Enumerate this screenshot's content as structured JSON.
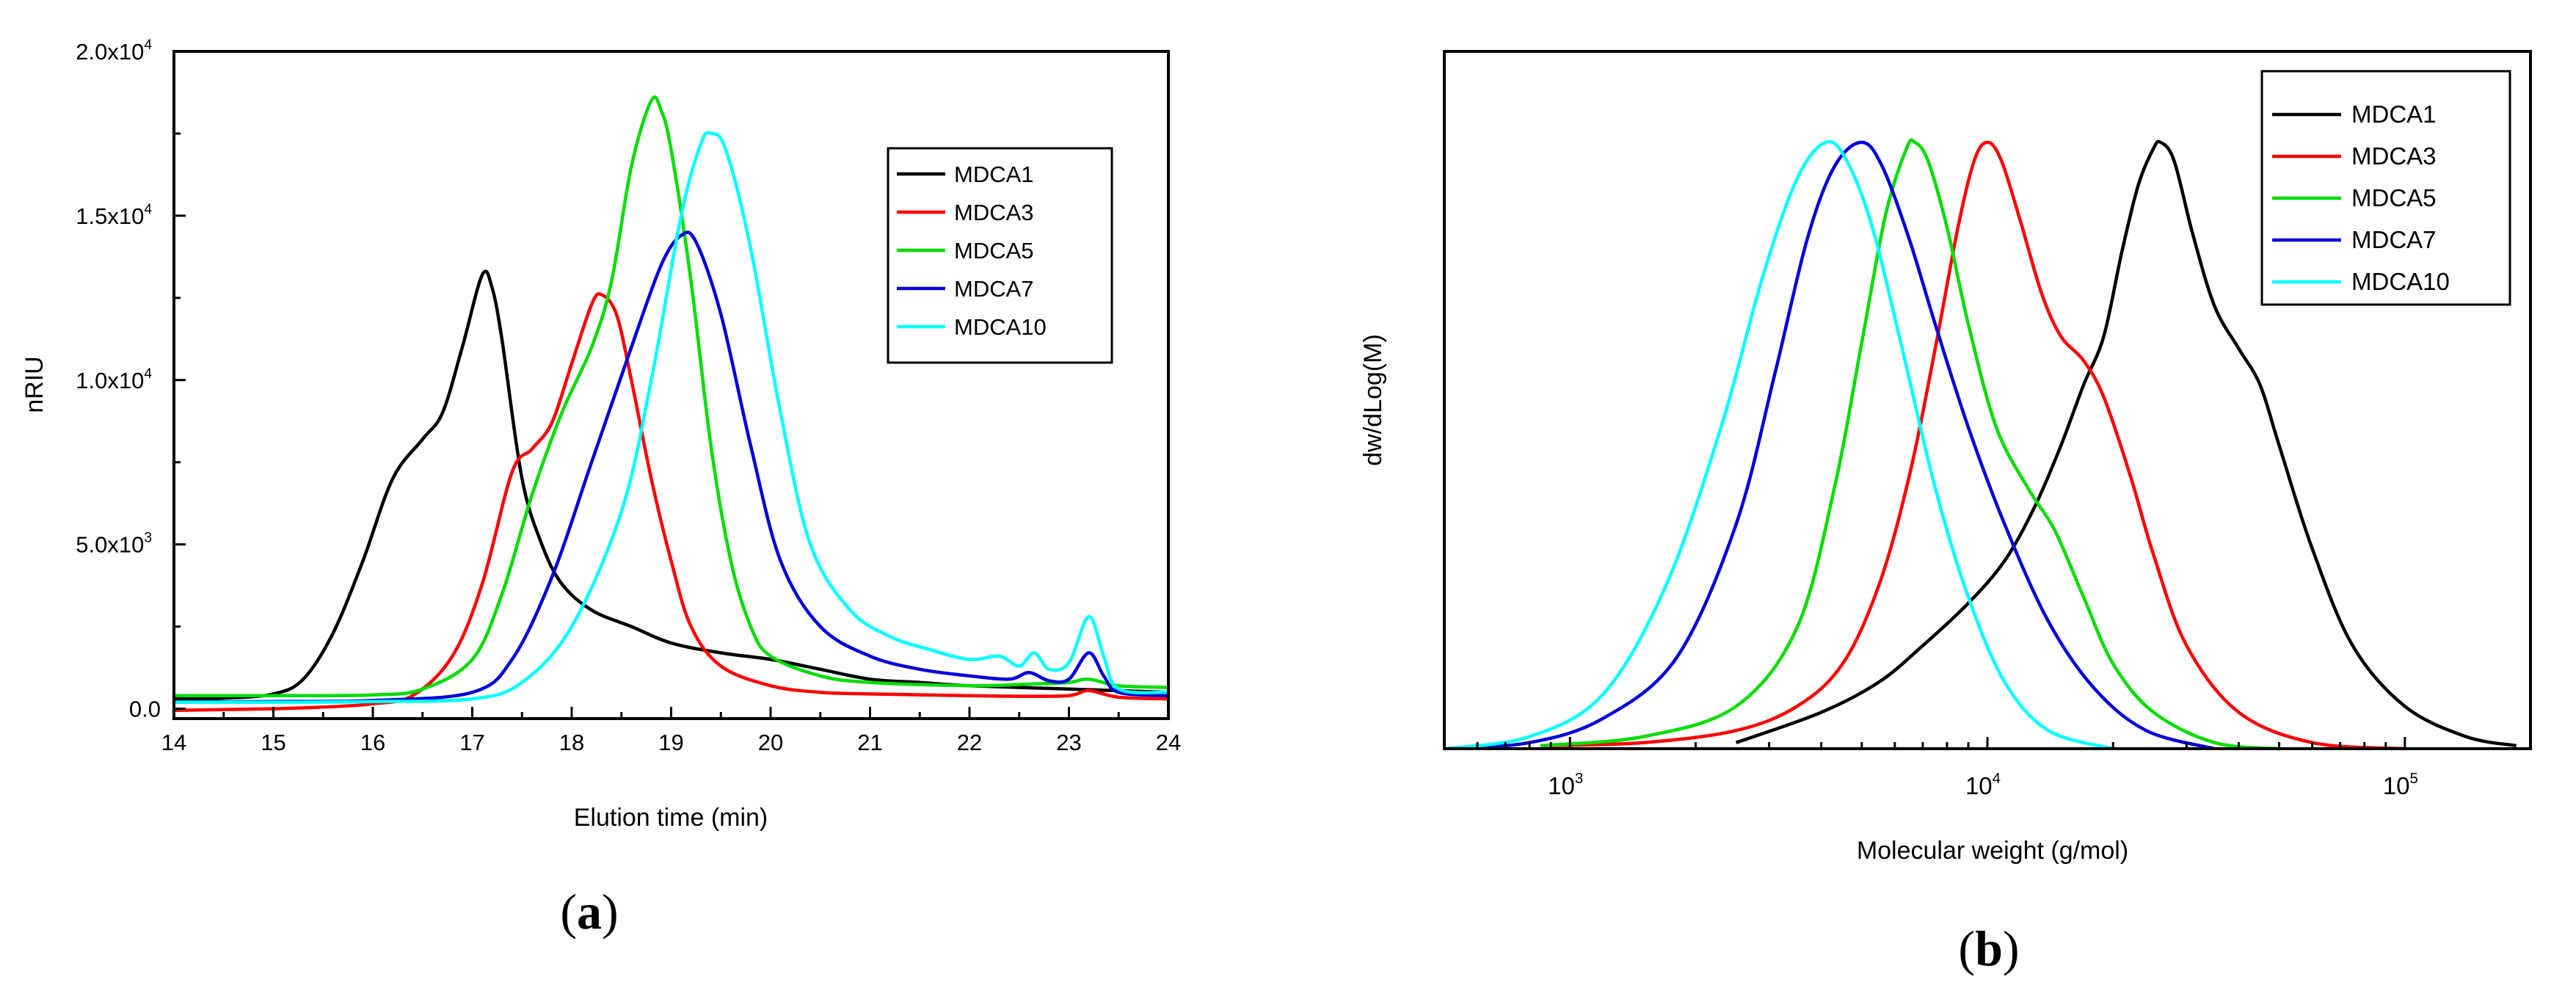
{
  "chart_data": [
    {
      "type": "line",
      "panel_label": "(a)",
      "panel_letter": "a",
      "xlabel": "Elution time (min)",
      "ylabel": "nRIU",
      "xlim": [
        14,
        24
      ],
      "ylim": [
        -300,
        20000
      ],
      "xticks": [
        "14",
        "15",
        "16",
        "17",
        "18",
        "19",
        "20",
        "21",
        "22",
        "23",
        "24"
      ],
      "xtick_values": [
        14,
        15,
        16,
        17,
        18,
        19,
        20,
        21,
        22,
        23,
        24
      ],
      "yticks": [
        {
          "value": 0,
          "label": "0.0"
        },
        {
          "value": 5000,
          "label": "5.0x10",
          "exp": "3"
        },
        {
          "value": 10000,
          "label": "1.0x10",
          "exp": "4"
        },
        {
          "value": 15000,
          "label": "1.5x10",
          "exp": "4"
        },
        {
          "value": 20000,
          "label": "2.0x10",
          "exp": "4"
        }
      ],
      "legend": [
        "MDCA1",
        "MDCA3",
        "MDCA5",
        "MDCA7",
        "MDCA10"
      ],
      "legend_position": "top-right",
      "series": [
        {
          "name": "MDCA1",
          "color": "#000000",
          "points": [
            [
              14,
              300
            ],
            [
              14.5,
              320
            ],
            [
              15,
              450
            ],
            [
              15.3,
              900
            ],
            [
              15.6,
              2300
            ],
            [
              15.9,
              4500
            ],
            [
              16.2,
              7000
            ],
            [
              16.5,
              8200
            ],
            [
              16.7,
              9000
            ],
            [
              16.9,
              11000
            ],
            [
              17.1,
              13200
            ],
            [
              17.2,
              12800
            ],
            [
              17.3,
              11200
            ],
            [
              17.5,
              7000
            ],
            [
              17.7,
              5000
            ],
            [
              17.9,
              3800
            ],
            [
              18.2,
              3000
            ],
            [
              18.6,
              2500
            ],
            [
              19,
              2000
            ],
            [
              19.5,
              1700
            ],
            [
              20,
              1500
            ],
            [
              20.5,
              1200
            ],
            [
              21,
              900
            ],
            [
              21.5,
              800
            ],
            [
              22,
              700
            ],
            [
              23,
              600
            ],
            [
              24,
              500
            ]
          ]
        },
        {
          "name": "MDCA3",
          "color": "#ff0000",
          "points": [
            [
              14,
              -50
            ],
            [
              15,
              0
            ],
            [
              15.5,
              50
            ],
            [
              16,
              150
            ],
            [
              16.4,
              400
            ],
            [
              16.8,
              1600
            ],
            [
              17.1,
              3800
            ],
            [
              17.4,
              7200
            ],
            [
              17.6,
              7900
            ],
            [
              17.8,
              8700
            ],
            [
              18,
              10500
            ],
            [
              18.2,
              12300
            ],
            [
              18.3,
              12600
            ],
            [
              18.45,
              12000
            ],
            [
              18.6,
              10000
            ],
            [
              18.8,
              7000
            ],
            [
              19,
              4500
            ],
            [
              19.2,
              2500
            ],
            [
              19.5,
              1300
            ],
            [
              20,
              700
            ],
            [
              20.5,
              500
            ],
            [
              21,
              450
            ],
            [
              22,
              400
            ],
            [
              22.5,
              380
            ],
            [
              23,
              400
            ],
            [
              23.2,
              550
            ],
            [
              23.5,
              350
            ],
            [
              24,
              300
            ]
          ]
        },
        {
          "name": "MDCA5",
          "color": "#00dd00",
          "points": [
            [
              14,
              400
            ],
            [
              15,
              400
            ],
            [
              16,
              420
            ],
            [
              16.5,
              600
            ],
            [
              17,
              1500
            ],
            [
              17.3,
              3500
            ],
            [
              17.6,
              6500
            ],
            [
              17.9,
              9000
            ],
            [
              18.2,
              11000
            ],
            [
              18.4,
              13000
            ],
            [
              18.6,
              16500
            ],
            [
              18.8,
              18500
            ],
            [
              18.9,
              18200
            ],
            [
              19,
              17000
            ],
            [
              19.2,
              13000
            ],
            [
              19.4,
              8000
            ],
            [
              19.6,
              4500
            ],
            [
              19.8,
              2500
            ],
            [
              20,
              1600
            ],
            [
              20.5,
              1000
            ],
            [
              21,
              800
            ],
            [
              22,
              700
            ],
            [
              22.6,
              750
            ],
            [
              23,
              800
            ],
            [
              23.2,
              900
            ],
            [
              23.5,
              700
            ],
            [
              24,
              650
            ]
          ]
        },
        {
          "name": "MDCA7",
          "color": "#0000dd",
          "points": [
            [
              14,
              200
            ],
            [
              15,
              220
            ],
            [
              16,
              250
            ],
            [
              17,
              500
            ],
            [
              17.4,
              1500
            ],
            [
              17.8,
              4000
            ],
            [
              18.2,
              7500
            ],
            [
              18.6,
              11000
            ],
            [
              18.9,
              13500
            ],
            [
              19.1,
              14400
            ],
            [
              19.25,
              14200
            ],
            [
              19.5,
              12000
            ],
            [
              19.8,
              8000
            ],
            [
              20.1,
              4500
            ],
            [
              20.5,
              2500
            ],
            [
              21,
              1600
            ],
            [
              21.5,
              1200
            ],
            [
              22,
              1000
            ],
            [
              22.4,
              900
            ],
            [
              22.6,
              1100
            ],
            [
              22.8,
              850
            ],
            [
              23,
              900
            ],
            [
              23.2,
              1700
            ],
            [
              23.35,
              1000
            ],
            [
              23.5,
              500
            ],
            [
              24,
              400
            ]
          ]
        },
        {
          "name": "MDCA10",
          "color": "#00ffff",
          "points": [
            [
              14,
              200
            ],
            [
              15,
              200
            ],
            [
              16,
              220
            ],
            [
              17,
              300
            ],
            [
              17.5,
              800
            ],
            [
              18,
              2500
            ],
            [
              18.5,
              6000
            ],
            [
              18.8,
              10000
            ],
            [
              19.1,
              15000
            ],
            [
              19.3,
              17200
            ],
            [
              19.4,
              17500
            ],
            [
              19.55,
              17000
            ],
            [
              19.8,
              14000
            ],
            [
              20.1,
              9000
            ],
            [
              20.4,
              5000
            ],
            [
              20.8,
              3000
            ],
            [
              21.2,
              2200
            ],
            [
              21.6,
              1800
            ],
            [
              22,
              1500
            ],
            [
              22.3,
              1600
            ],
            [
              22.5,
              1300
            ],
            [
              22.65,
              1700
            ],
            [
              22.8,
              1200
            ],
            [
              23,
              1400
            ],
            [
              23.2,
              2800
            ],
            [
              23.35,
              1600
            ],
            [
              23.5,
              600
            ],
            [
              24,
              500
            ]
          ]
        }
      ]
    },
    {
      "type": "line",
      "panel_label": "(b)",
      "panel_letter": "b",
      "xlabel": "Molecular weight (g/mol)",
      "ylabel": "dw/dLog(M)",
      "xscale": "log",
      "xlim": [
        500,
        200000
      ],
      "ylim": [
        0,
        1.15
      ],
      "xticks": [
        {
          "value": 1000,
          "label": "10",
          "exp": "3"
        },
        {
          "value": 10000,
          "label": "10",
          "exp": "4"
        },
        {
          "value": 100000,
          "label": "10",
          "exp": "5"
        }
      ],
      "legend": [
        "MDCA1",
        "MDCA3",
        "MDCA5",
        "MDCA7",
        "MDCA10"
      ],
      "legend_position": "top-right",
      "series": [
        {
          "name": "MDCA1",
          "color": "#000000",
          "points": [
            [
              2500,
              0.01
            ],
            [
              4000,
              0.06
            ],
            [
              5500,
              0.11
            ],
            [
              7000,
              0.17
            ],
            [
              9000,
              0.24
            ],
            [
              11000,
              0.31
            ],
            [
              13000,
              0.4
            ],
            [
              15000,
              0.5
            ],
            [
              17000,
              0.6
            ],
            [
              19000,
              0.68
            ],
            [
              21000,
              0.82
            ],
            [
              23000,
              0.93
            ],
            [
              25000,
              0.99
            ],
            [
              26000,
              1.0
            ],
            [
              28000,
              0.97
            ],
            [
              31000,
              0.85
            ],
            [
              35000,
              0.73
            ],
            [
              40000,
              0.66
            ],
            [
              45000,
              0.6
            ],
            [
              50000,
              0.5
            ],
            [
              60000,
              0.33
            ],
            [
              75000,
              0.17
            ],
            [
              100000,
              0.07
            ],
            [
              140000,
              0.02
            ],
            [
              185000,
              0.005
            ]
          ]
        },
        {
          "name": "MDCA3",
          "color": "#ff0000",
          "points": [
            [
              850,
              0.005
            ],
            [
              1500,
              0.01
            ],
            [
              2500,
              0.03
            ],
            [
              3500,
              0.07
            ],
            [
              4500,
              0.14
            ],
            [
              5500,
              0.27
            ],
            [
              6500,
              0.45
            ],
            [
              7500,
              0.66
            ],
            [
              8500,
              0.86
            ],
            [
              9300,
              0.97
            ],
            [
              10000,
              1.0
            ],
            [
              10800,
              0.97
            ],
            [
              12000,
              0.87
            ],
            [
              13500,
              0.75
            ],
            [
              15000,
              0.68
            ],
            [
              17000,
              0.64
            ],
            [
              19000,
              0.58
            ],
            [
              22000,
              0.45
            ],
            [
              25000,
              0.32
            ],
            [
              30000,
              0.17
            ],
            [
              40000,
              0.06
            ],
            [
              60000,
              0.01
            ],
            [
              100000,
              0.0
            ]
          ]
        },
        {
          "name": "MDCA5",
          "color": "#00dd00",
          "points": [
            [
              850,
              0.005
            ],
            [
              1500,
              0.02
            ],
            [
              2500,
              0.07
            ],
            [
              3500,
              0.2
            ],
            [
              4300,
              0.43
            ],
            [
              5000,
              0.67
            ],
            [
              5700,
              0.88
            ],
            [
              6400,
              0.99
            ],
            [
              6700,
              1.0
            ],
            [
              7200,
              0.97
            ],
            [
              8000,
              0.86
            ],
            [
              9000,
              0.7
            ],
            [
              10500,
              0.53
            ],
            [
              12500,
              0.43
            ],
            [
              14500,
              0.36
            ],
            [
              17000,
              0.25
            ],
            [
              20000,
              0.14
            ],
            [
              25000,
              0.06
            ],
            [
              35000,
              0.01
            ],
            [
              50000,
              0.0
            ]
          ]
        },
        {
          "name": "MDCA7",
          "color": "#0000dd",
          "points": [
            [
              500,
              0.0
            ],
            [
              800,
              0.01
            ],
            [
              1200,
              0.05
            ],
            [
              1800,
              0.15
            ],
            [
              2500,
              0.37
            ],
            [
              3100,
              0.62
            ],
            [
              3700,
              0.84
            ],
            [
              4300,
              0.96
            ],
            [
              5000,
              1.0
            ],
            [
              5600,
              0.96
            ],
            [
              6500,
              0.84
            ],
            [
              7500,
              0.7
            ],
            [
              9000,
              0.53
            ],
            [
              11000,
              0.37
            ],
            [
              14000,
              0.21
            ],
            [
              18000,
              0.1
            ],
            [
              24000,
              0.03
            ],
            [
              35000,
              0.0
            ]
          ]
        },
        {
          "name": "MDCA10",
          "color": "#00ffff",
          "points": [
            [
              500,
              0.0
            ],
            [
              800,
              0.02
            ],
            [
              1200,
              0.09
            ],
            [
              1700,
              0.27
            ],
            [
              2300,
              0.53
            ],
            [
              2900,
              0.78
            ],
            [
              3500,
              0.94
            ],
            [
              4100,
              1.0
            ],
            [
              4600,
              0.97
            ],
            [
              5300,
              0.86
            ],
            [
              6200,
              0.67
            ],
            [
              7500,
              0.43
            ],
            [
              9000,
              0.25
            ],
            [
              11000,
              0.11
            ],
            [
              14000,
              0.03
            ],
            [
              20000,
              0.0
            ]
          ]
        }
      ]
    }
  ]
}
